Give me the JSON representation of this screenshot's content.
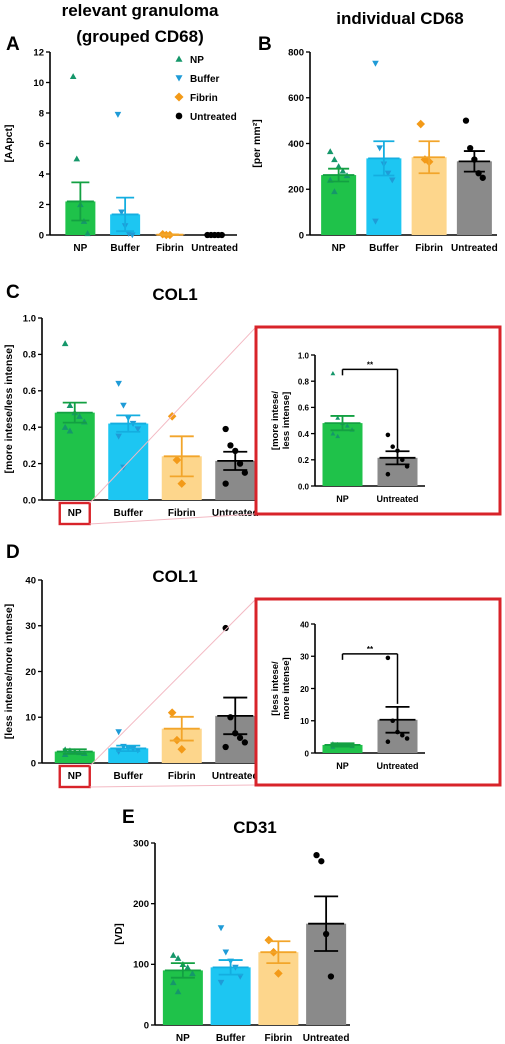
{
  "colors": {
    "NP": "#1fc24a",
    "Buffer": "#1dc6f2",
    "Fibrin": "#fdd68c",
    "Untreated": "#8a8a8a",
    "NP_point": "#15976a",
    "Buffer_point": "#1f9bd7",
    "Fibrin_point": "#f39a18",
    "Untreated_point": "#000000",
    "NP_err": "#13a042",
    "Buffer_err": "#14aee0",
    "Fibrin_err": "#f2a52a",
    "Untreated_err": "#000000",
    "highlight": "#d8232a",
    "zoom_line": "#f3b9c3"
  },
  "legend": [
    {
      "label": "NP",
      "marker": "triangle-up",
      "key": "NP"
    },
    {
      "label": "Buffer",
      "marker": "triangle-down",
      "key": "Buffer"
    },
    {
      "label": "Fibrin",
      "marker": "diamond",
      "key": "Fibrin"
    },
    {
      "label": "Untreated",
      "marker": "circle",
      "key": "Untreated"
    }
  ],
  "chart_data": [
    {
      "id": "A",
      "letter": "A",
      "type": "bar",
      "title": [
        "relevant granuloma",
        "(grouped CD68)"
      ],
      "ylabel": "[AApct]",
      "ylim": [
        0,
        12
      ],
      "yticks": [
        0,
        2,
        4,
        6,
        8,
        10,
        12
      ],
      "categories": [
        "NP",
        "Buffer",
        "Fibrin",
        "Untreated"
      ],
      "values": [
        2.2,
        1.35,
        0.02,
        0.0
      ],
      "errors": [
        1.25,
        1.1,
        0.02,
        0.0
      ],
      "points": [
        [
          10.4,
          5.0,
          2.0,
          0.9,
          0.1
        ],
        [
          7.9,
          1.5,
          0.6,
          0.1,
          0.0
        ],
        [
          0.05,
          0.0,
          0.0
        ],
        [
          0,
          0,
          0,
          0,
          0
        ]
      ]
    },
    {
      "id": "B",
      "letter": "B",
      "type": "bar",
      "title": [
        "individual CD68"
      ],
      "ylabel": "[per mm²]",
      "ylim": [
        0,
        800
      ],
      "yticks": [
        0,
        200,
        400,
        600,
        800
      ],
      "categories": [
        "NP",
        "Buffer",
        "Fibrin",
        "Untreated"
      ],
      "values": [
        262,
        335,
        340,
        322
      ],
      "errors": [
        28,
        75,
        70,
        45
      ],
      "points": [
        [
          365,
          330,
          300,
          280,
          260,
          240,
          190
        ],
        [
          750,
          380,
          310,
          270,
          240,
          60
        ],
        [
          485,
          330,
          320
        ],
        [
          500,
          380,
          330,
          270,
          250
        ]
      ]
    },
    {
      "id": "C",
      "letter": "C",
      "type": "bar",
      "title": [
        "COL1"
      ],
      "ylabel": "[more intese/less intense]",
      "ylim": [
        0,
        1.0
      ],
      "yticks": [
        0.0,
        0.2,
        0.4,
        0.6,
        0.8,
        1.0
      ],
      "categories": [
        "NP",
        "Buffer",
        "Fibrin",
        "Untreated"
      ],
      "values": [
        0.48,
        0.42,
        0.24,
        0.215
      ],
      "errors": [
        0.055,
        0.045,
        0.11,
        0.05
      ],
      "points": [
        [
          0.86,
          0.52,
          0.48,
          0.46,
          0.43,
          0.4,
          0.38
        ],
        [
          0.64,
          0.52,
          0.45,
          0.42,
          0.39,
          0.35,
          0.18
        ],
        [
          0.46,
          0.22,
          0.09
        ],
        [
          0.39,
          0.3,
          0.27,
          0.2,
          0.15,
          0.09
        ]
      ],
      "highlight_category": "NP",
      "inset": {
        "ylabel": [
          "[more intese/",
          "less intense]"
        ],
        "ylim": [
          0,
          1.0
        ],
        "yticks": [
          0.0,
          0.2,
          0.4,
          0.6,
          0.8,
          1.0
        ],
        "categories": [
          "NP",
          "Untreated"
        ],
        "values": [
          0.48,
          0.215
        ],
        "errors": [
          0.055,
          0.05
        ],
        "points": [
          [
            0.86,
            0.52,
            0.48,
            0.46,
            0.43,
            0.4,
            0.38
          ],
          [
            0.39,
            0.3,
            0.27,
            0.2,
            0.15,
            0.09
          ]
        ],
        "significance": "**"
      }
    },
    {
      "id": "D",
      "letter": "D",
      "type": "bar",
      "title": [
        "COL1"
      ],
      "ylabel": "[less intense/more intense]",
      "ylim": [
        0,
        40
      ],
      "yticks": [
        0,
        10,
        20,
        30,
        40
      ],
      "categories": [
        "NP",
        "Buffer",
        "Fibrin",
        "Untreated"
      ],
      "values": [
        2.5,
        3.2,
        7.5,
        10.3
      ],
      "errors": [
        0.5,
        0.6,
        2.6,
        4.0
      ],
      "points": [
        [
          2.9,
          2.7,
          2.5,
          2.3,
          2.1,
          1.9
        ],
        [
          6.8,
          3.6,
          3.3,
          3.1,
          2.8,
          2.5
        ],
        [
          11.0,
          5.0,
          3.0
        ],
        [
          29.5,
          10.0,
          6.5,
          5.5,
          4.5,
          3.5
        ]
      ],
      "highlight_category": "NP",
      "inset": {
        "ylabel": [
          "[less intese/",
          "more intense]"
        ],
        "ylim": [
          0,
          40
        ],
        "yticks": [
          0,
          10,
          20,
          30,
          40
        ],
        "categories": [
          "NP",
          "Untreated"
        ],
        "values": [
          2.5,
          10.3
        ],
        "errors": [
          0.5,
          4.0
        ],
        "points": [
          [
            2.9,
            2.7,
            2.5,
            2.3,
            2.1,
            1.9
          ],
          [
            29.5,
            10.0,
            6.5,
            5.5,
            4.5,
            3.5
          ]
        ],
        "significance": "**"
      }
    },
    {
      "id": "E",
      "letter": "E",
      "type": "bar",
      "title": [
        "CD31"
      ],
      "ylabel": "[VD]",
      "ylim": [
        0,
        300
      ],
      "yticks": [
        0,
        100,
        200,
        300
      ],
      "categories": [
        "NP",
        "Buffer",
        "Fibrin",
        "Untreated"
      ],
      "values": [
        90,
        95,
        120,
        167
      ],
      "errors": [
        12,
        12,
        18,
        45
      ],
      "points": [
        [
          115,
          110,
          100,
          95,
          85,
          70,
          55
        ],
        [
          160,
          120,
          105,
          95,
          80,
          70
        ],
        [
          140,
          120,
          85
        ],
        [
          280,
          270,
          150,
          80
        ]
      ]
    }
  ]
}
